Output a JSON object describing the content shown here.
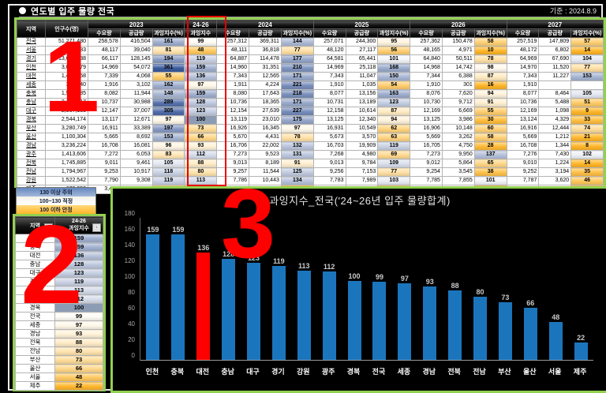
{
  "meta": {
    "title": "연도별 입주 물량 전국",
    "date_label": "기준 : 2024.8.9"
  },
  "main_table": {
    "col_headers": {
      "region": "지역",
      "population": "인구수(명)",
      "demand": "수요량",
      "supply": "공급량",
      "index": "과잉지수(%)",
      "group_2426": "24-26",
      "index_2426": "과잉지수",
      "years": [
        "2023",
        "2024",
        "2025",
        "2026",
        "2027"
      ]
    },
    "rows": [
      [
        "전국",
        "51,271,480",
        "258,578",
        "416,504",
        161,
        99,
        "257,312",
        "369,311",
        144,
        "257,071",
        "244,300",
        95,
        "257,362",
        "150,478",
        58,
        "257,519",
        "147,809",
        57
      ],
      [
        "서울",
        "9,366,283",
        "48,117",
        "39,040",
        81,
        48,
        "48,111",
        "36,818",
        77,
        "48,120",
        "27,117",
        56,
        "48,165",
        "4,971",
        10,
        "48,172",
        "6,802",
        14
      ],
      [
        "경기",
        "13,631,438",
        "66,117",
        "128,145",
        194,
        119,
        "64,887",
        "114,478",
        177,
        "64,581",
        "65,441",
        101,
        "64,840",
        "50,511",
        78,
        "64,969",
        "67,690",
        104
      ],
      [
        "인천",
        "3,001,079",
        "14,969",
        "54,072",
        361,
        159,
        "14,960",
        "31,351",
        210,
        "14,969",
        "25,118",
        168,
        "14,968",
        "14,742",
        98,
        "14,970",
        "11,520",
        77
      ],
      [
        "대전",
        "1,440,558",
        "7,339",
        "4,068",
        55,
        136,
        "7,343",
        "12,565",
        171,
        "7,343",
        "11,047",
        150,
        "7,344",
        "6,388",
        87,
        "7,343",
        "11,227",
        153
      ],
      [
        "세종",
        "387,940",
        "1,916",
        "3,102",
        162,
        97,
        "1,911",
        "4,224",
        221,
        "1,910",
        "1,035",
        54,
        "1,910",
        "301",
        16,
        "1,910",
        "",
        ""
      ],
      [
        "충북",
        "1,591,485",
        "8,082",
        "11,944",
        148,
        159,
        "8,080",
        "17,643",
        218,
        "8,077",
        "13,156",
        163,
        "8,076",
        "7,620",
        94,
        "8,077",
        "8,464",
        105
      ],
      [
        "충남",
        "2,134,817",
        "10,737",
        "30,988",
        289,
        128,
        "10,736",
        "18,365",
        171,
        "10,731",
        "13,189",
        123,
        "10,730",
        "9,712",
        91,
        "10,736",
        "5,488",
        51
      ],
      [
        "대구",
        "2,367,183",
        "12,147",
        "37,007",
        305,
        123,
        "12,154",
        "27,639",
        227,
        "12,158",
        "10,614",
        87,
        "12,169",
        "6,669",
        55,
        "12,169",
        "1,098",
        9
      ],
      [
        "경북",
        "2,544,174",
        "13,117",
        "12,671",
        97,
        100,
        "13,119",
        "23,010",
        175,
        "13,125",
        "12,340",
        94,
        "13,125",
        "3,986",
        30,
        "13,124",
        "4,329",
        33
      ],
      [
        "부산",
        "3,280,749",
        "16,911",
        "33,389",
        197,
        73,
        "16,926",
        "16,345",
        97,
        "16,931",
        "10,549",
        62,
        "16,906",
        "10,148",
        60,
        "16,916",
        "12,444",
        74
      ],
      [
        "울산",
        "1,100,304",
        "5,665",
        "8,692",
        153,
        66,
        "5,670",
        "4,431",
        78,
        "5,673",
        "3,570",
        63,
        "5,669",
        "3,262",
        58,
        "5,669",
        "1,212",
        21
      ],
      [
        "경남",
        "3,236,224",
        "16,708",
        "16,081",
        96,
        93,
        "16,706",
        "22,002",
        132,
        "16,703",
        "19,909",
        119,
        "16,705",
        "4,750",
        28,
        "16,708",
        "1,344",
        8
      ],
      [
        "광주",
        "1,413,606",
        "7,272",
        "6,053",
        83,
        112,
        "7,273",
        "9,523",
        131,
        "7,268",
        "4,980",
        69,
        "7,273",
        "9,950",
        137,
        "7,276",
        "7,430",
        102
      ],
      [
        "전북",
        "1,745,885",
        "9,011",
        "9,461",
        105,
        88,
        "9,013",
        "8,189",
        91,
        "9,013",
        "9,784",
        109,
        "9,012",
        "5,864",
        65,
        "9,010",
        "1,224",
        14
      ],
      [
        "전남",
        "1,794,967",
        "9,253",
        "10,917",
        118,
        80,
        "9,257",
        "11,544",
        125,
        "9,256",
        "7,153",
        77,
        "9,254",
        "3,545",
        38,
        "9,252",
        "3,194",
        35
      ],
      [
        "강원",
        "1,522,542",
        "7,790",
        "9,308",
        119,
        113,
        "7,786",
        "10,443",
        134,
        "7,783",
        "7,989",
        103,
        "7,785",
        "7,855",
        101,
        "7,787",
        "3,620",
        46
      ],
      [
        "제주",
        "672,252",
        "3,482",
        "1,566",
        46,
        22,
        "3,490",
        "741",
        22,
        "3,430",
        "1,309",
        38,
        "3,431",
        "204",
        6,
        "3,431",
        "728",
        21
      ]
    ]
  },
  "legend": {
    "items": [
      {
        "label": "130 이상 주의",
        "color_top": "#6487bd",
        "color_bottom": "#a3b8da"
      },
      {
        "label": "100~130 적정",
        "color_top": "#f4f2e9",
        "color_bottom": "#ffffff"
      },
      {
        "label": "100 이하 안정",
        "color_top": "#ffd97d",
        "color_bottom": "#ffb628"
      }
    ]
  },
  "rank_table": {
    "headers": {
      "region": "지역",
      "group": "24-26",
      "index": "과잉지수"
    },
    "filter_icons": [
      "dropdown-filter-icon",
      "sort-filter-icon"
    ],
    "rows": [
      [
        "인천",
        159
      ],
      [
        "충북",
        159
      ],
      [
        "대전",
        136
      ],
      [
        "충남",
        128
      ],
      [
        "대구",
        123
      ],
      [
        "경기",
        119
      ],
      [
        "강원",
        113
      ],
      [
        "광주",
        112
      ],
      [
        "경북",
        100
      ],
      [
        "전국",
        99
      ],
      [
        "세종",
        97
      ],
      [
        "경남",
        93
      ],
      [
        "전북",
        88
      ],
      [
        "전남",
        80
      ],
      [
        "부산",
        73
      ],
      [
        "울산",
        66
      ],
      [
        "서울",
        48
      ],
      [
        "제주",
        22
      ]
    ]
  },
  "chart_data": {
    "type": "bar",
    "title": "과잉지수_전국('24~26년 입주 물량합계)",
    "categories": [
      "인천",
      "충북",
      "대전",
      "충남",
      "대구",
      "경기",
      "강원",
      "광주",
      "경북",
      "전국",
      "세종",
      "경남",
      "전북",
      "전남",
      "부산",
      "울산",
      "서울",
      "제주"
    ],
    "values": [
      159,
      159,
      136,
      128,
      123,
      119,
      113,
      112,
      100,
      99,
      97,
      93,
      88,
      80,
      73,
      66,
      48,
      22
    ],
    "highlight_category": "대전",
    "bar_color": "#1b75bc",
    "highlight_color": "#ff0000",
    "xlabel": "",
    "ylabel": "",
    "ylim": [
      0,
      180
    ],
    "ytick_step": 20,
    "grid": false,
    "legend_position": "none"
  },
  "annotations": {
    "one": "1",
    "two": "2",
    "three": "3"
  },
  "colors": {
    "accent_green": "#92D050",
    "annotation_red": "#FF0000",
    "scale_low": "#FFB628",
    "scale_mid": "#FFFFFF",
    "scale_high": "#3A5A9C",
    "scale_exact100": "#8C9CB4"
  }
}
